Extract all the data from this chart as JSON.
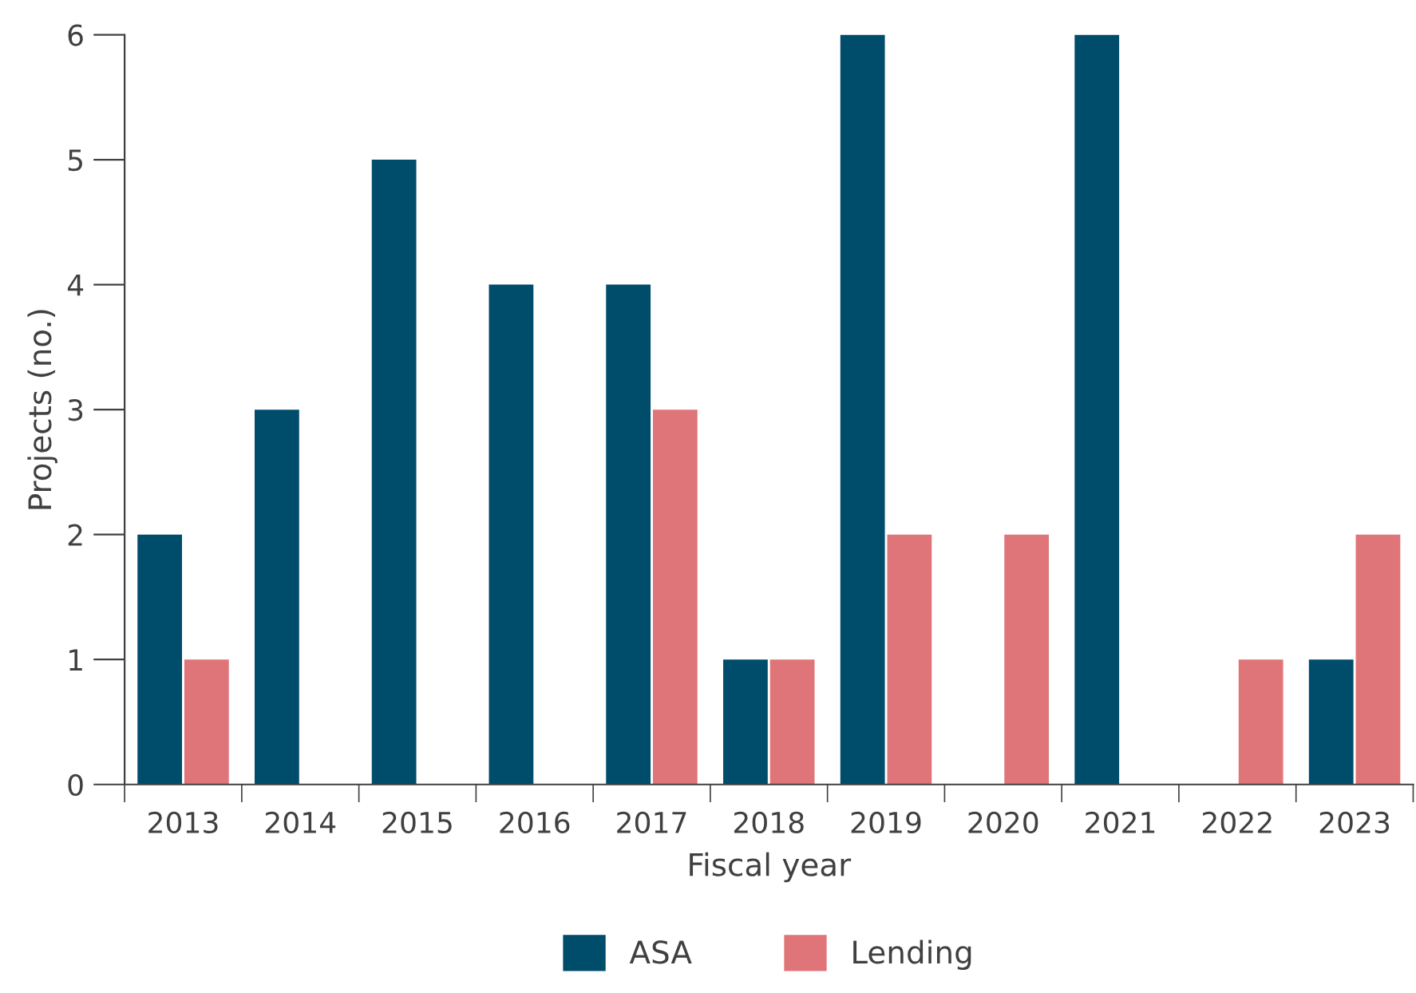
{
  "chart_data": {
    "type": "bar",
    "xlabel": "Fiscal year",
    "ylabel": "Projects (no.)",
    "categories": [
      "2013",
      "2014",
      "2015",
      "2016",
      "2017",
      "2018",
      "2019",
      "2020",
      "2021",
      "2022",
      "2023"
    ],
    "series": [
      {
        "name": "ASA",
        "color": "#004c6b",
        "values": [
          2,
          3,
          5,
          4,
          4,
          1,
          6,
          0,
          6,
          0,
          1
        ]
      },
      {
        "name": "Lending",
        "color": "#e07579",
        "values": [
          1,
          0,
          0,
          0,
          3,
          1,
          2,
          2,
          0,
          1,
          2
        ]
      }
    ],
    "ylim": [
      0,
      6
    ],
    "yticks": [
      0,
      1,
      2,
      3,
      4,
      5,
      6
    ],
    "grid": false,
    "legend": "bottom"
  }
}
